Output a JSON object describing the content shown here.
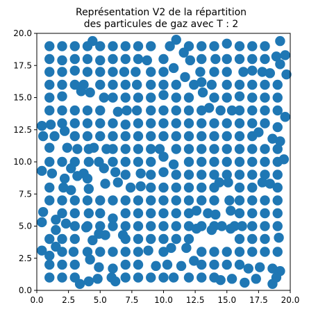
{
  "chart_data": {
    "type": "scatter",
    "title_line1": "Représentation V2 de la répartition",
    "title_line2": "des particules de gaz avec T : 2",
    "xlabel": "",
    "ylabel": "",
    "xlim": [
      0,
      20
    ],
    "ylim": [
      0,
      20
    ],
    "grid": false,
    "marker_color": "#1f77b4",
    "x_ticks": [
      "0.0",
      "2.5",
      "5.0",
      "7.5",
      "10.0",
      "12.5",
      "15.0",
      "17.5",
      "20.0"
    ],
    "y_ticks": [
      "0.0",
      "2.5",
      "5.0",
      "7.5",
      "10.0",
      "12.5",
      "15.0",
      "17.5",
      "20.0"
    ],
    "points": [
      [
        1.0,
        19.0
      ],
      [
        2.0,
        19.0
      ],
      [
        3.0,
        19.0
      ],
      [
        4.0,
        19.0
      ],
      [
        4.4,
        19.4
      ],
      [
        5.0,
        19.0
      ],
      [
        6.0,
        19.0
      ],
      [
        7.0,
        19.0
      ],
      [
        8.0,
        19.0
      ],
      [
        9.0,
        19.0
      ],
      [
        10.5,
        19.0
      ],
      [
        11.0,
        19.5
      ],
      [
        12.0,
        19.0
      ],
      [
        13.0,
        19.0
      ],
      [
        14.0,
        19.0
      ],
      [
        15.0,
        19.2
      ],
      [
        16.0,
        19.0
      ],
      [
        17.0,
        19.0
      ],
      [
        18.0,
        19.0
      ],
      [
        19.2,
        19.4
      ],
      [
        1.0,
        18.0
      ],
      [
        2.0,
        17.9
      ],
      [
        3.0,
        18.0
      ],
      [
        4.0,
        18.0
      ],
      [
        5.0,
        17.9
      ],
      [
        6.0,
        18.0
      ],
      [
        7.0,
        18.0
      ],
      [
        8.0,
        18.0
      ],
      [
        8.7,
        17.9
      ],
      [
        10.0,
        18.0
      ],
      [
        11.6,
        18.5
      ],
      [
        12.1,
        17.9
      ],
      [
        13.0,
        18.0
      ],
      [
        14.1,
        18.0
      ],
      [
        15.0,
        18.0
      ],
      [
        16.0,
        18.0
      ],
      [
        17.0,
        18.0
      ],
      [
        18.0,
        18.0
      ],
      [
        18.9,
        18.2
      ],
      [
        19.6,
        18.3
      ],
      [
        1.0,
        17.0
      ],
      [
        2.0,
        17.0
      ],
      [
        3.0,
        17.1
      ],
      [
        4.0,
        17.0
      ],
      [
        5.0,
        17.0
      ],
      [
        6.0,
        17.0
      ],
      [
        6.9,
        17.0
      ],
      [
        7.8,
        17.0
      ],
      [
        9.0,
        17.0
      ],
      [
        10.0,
        17.0
      ],
      [
        10.8,
        17.3
      ],
      [
        12.9,
        17.0
      ],
      [
        14.0,
        17.0
      ],
      [
        15.0,
        17.0
      ],
      [
        16.3,
        17.0
      ],
      [
        17.0,
        17.1
      ],
      [
        17.8,
        17.0
      ],
      [
        18.4,
        16.9
      ],
      [
        19.2,
        17.6
      ],
      [
        1.0,
        16.0
      ],
      [
        2.0,
        16.0
      ],
      [
        3.0,
        16.0
      ],
      [
        3.7,
        16.0
      ],
      [
        5.0,
        16.0
      ],
      [
        6.0,
        16.0
      ],
      [
        7.0,
        16.0
      ],
      [
        7.9,
        16.0
      ],
      [
        9.0,
        16.0
      ],
      [
        10.0,
        16.0
      ],
      [
        11.0,
        16.0
      ],
      [
        11.7,
        16.6
      ],
      [
        12.4,
        16.0
      ],
      [
        13.0,
        16.2
      ],
      [
        13.8,
        16.0
      ],
      [
        15.0,
        16.0
      ],
      [
        16.0,
        16.0
      ],
      [
        17.0,
        16.0
      ],
      [
        18.0,
        16.0
      ],
      [
        19.0,
        16.0
      ],
      [
        19.7,
        16.8
      ],
      [
        1.0,
        15.0
      ],
      [
        2.0,
        15.1
      ],
      [
        3.5,
        15.5
      ],
      [
        4.2,
        15.4
      ],
      [
        5.3,
        15.0
      ],
      [
        6.0,
        15.0
      ],
      [
        7.0,
        15.0
      ],
      [
        8.0,
        15.0
      ],
      [
        9.0,
        15.0
      ],
      [
        10.0,
        15.2
      ],
      [
        11.0,
        15.0
      ],
      [
        12.0,
        15.0
      ],
      [
        13.1,
        15.4
      ],
      [
        14.0,
        15.0
      ],
      [
        15.0,
        15.0
      ],
      [
        16.0,
        15.1
      ],
      [
        17.0,
        15.0
      ],
      [
        18.0,
        15.0
      ],
      [
        19.0,
        15.0
      ],
      [
        1.0,
        14.0
      ],
      [
        2.0,
        14.0
      ],
      [
        3.0,
        14.0
      ],
      [
        4.0,
        14.0
      ],
      [
        5.0,
        14.0
      ],
      [
        6.4,
        13.9
      ],
      [
        7.1,
        14.0
      ],
      [
        7.9,
        14.0
      ],
      [
        9.0,
        14.0
      ],
      [
        10.0,
        14.0
      ],
      [
        11.0,
        14.0
      ],
      [
        12.0,
        14.0
      ],
      [
        13.0,
        14.0
      ],
      [
        13.6,
        14.2
      ],
      [
        14.5,
        14.0
      ],
      [
        15.4,
        14.0
      ],
      [
        16.0,
        14.0
      ],
      [
        17.0,
        14.0
      ],
      [
        18.0,
        14.0
      ],
      [
        19.0,
        14.0
      ],
      [
        19.6,
        13.5
      ],
      [
        0.4,
        12.8
      ],
      [
        1.1,
        12.9
      ],
      [
        2.0,
        13.0
      ],
      [
        3.0,
        13.0
      ],
      [
        4.0,
        13.0
      ],
      [
        5.0,
        13.0
      ],
      [
        6.0,
        13.0
      ],
      [
        7.0,
        12.9
      ],
      [
        8.0,
        13.0
      ],
      [
        9.0,
        13.0
      ],
      [
        10.0,
        13.0
      ],
      [
        11.0,
        13.0
      ],
      [
        12.0,
        13.0
      ],
      [
        13.0,
        13.0
      ],
      [
        14.0,
        13.0
      ],
      [
        15.0,
        13.0
      ],
      [
        16.0,
        13.0
      ],
      [
        17.0,
        13.0
      ],
      [
        18.0,
        13.0
      ],
      [
        19.0,
        12.7
      ],
      [
        0.5,
        12.0
      ],
      [
        1.4,
        12.0
      ],
      [
        2.2,
        12.4
      ],
      [
        3.0,
        12.0
      ],
      [
        4.0,
        12.0
      ],
      [
        5.0,
        12.0
      ],
      [
        6.0,
        12.0
      ],
      [
        7.0,
        12.0
      ],
      [
        8.0,
        12.0
      ],
      [
        9.0,
        12.0
      ],
      [
        10.0,
        12.0
      ],
      [
        11.0,
        12.0
      ],
      [
        12.0,
        12.0
      ],
      [
        13.0,
        12.0
      ],
      [
        14.0,
        12.0
      ],
      [
        15.0,
        12.0
      ],
      [
        16.0,
        12.0
      ],
      [
        17.0,
        12.0
      ],
      [
        17.5,
        12.3
      ],
      [
        18.6,
        11.8
      ],
      [
        19.2,
        11.6
      ],
      [
        1.0,
        11.1
      ],
      [
        2.4,
        11.1
      ],
      [
        3.2,
        11.0
      ],
      [
        4.1,
        11.0
      ],
      [
        4.5,
        11.1
      ],
      [
        5.5,
        11.0
      ],
      [
        6.0,
        11.0
      ],
      [
        7.0,
        11.0
      ],
      [
        8.0,
        11.0
      ],
      [
        9.0,
        11.0
      ],
      [
        9.7,
        11.0
      ],
      [
        11.0,
        11.0
      ],
      [
        12.0,
        11.0
      ],
      [
        13.0,
        11.0
      ],
      [
        14.0,
        11.0
      ],
      [
        15.0,
        11.0
      ],
      [
        16.0,
        11.0
      ],
      [
        17.0,
        11.0
      ],
      [
        18.0,
        11.0
      ],
      [
        19.0,
        11.0
      ],
      [
        1.0,
        10.0
      ],
      [
        2.0,
        10.0
      ],
      [
        3.0,
        10.0
      ],
      [
        4.1,
        10.0
      ],
      [
        4.9,
        10.0
      ],
      [
        6.0,
        10.0
      ],
      [
        7.0,
        10.0
      ],
      [
        8.0,
        10.0
      ],
      [
        9.0,
        10.0
      ],
      [
        10.0,
        10.4
      ],
      [
        10.8,
        9.8
      ],
      [
        12.0,
        10.0
      ],
      [
        13.0,
        10.0
      ],
      [
        14.0,
        10.0
      ],
      [
        15.0,
        10.0
      ],
      [
        16.0,
        10.0
      ],
      [
        17.0,
        10.0
      ],
      [
        18.0,
        10.0
      ],
      [
        19.0,
        10.0
      ],
      [
        19.5,
        10.2
      ],
      [
        0.4,
        9.3
      ],
      [
        1.2,
        9.1
      ],
      [
        2.7,
        9.5
      ],
      [
        3.7,
        9.1
      ],
      [
        5.3,
        9.5
      ],
      [
        6.2,
        9.2
      ],
      [
        7.0,
        9.0
      ],
      [
        8.2,
        9.1
      ],
      [
        9.0,
        9.0
      ],
      [
        10.0,
        9.2
      ],
      [
        11.0,
        9.0
      ],
      [
        12.0,
        9.0
      ],
      [
        13.0,
        9.0
      ],
      [
        14.0,
        9.0
      ],
      [
        15.0,
        9.0
      ],
      [
        16.0,
        9.0
      ],
      [
        17.0,
        9.0
      ],
      [
        18.0,
        9.0
      ],
      [
        19.0,
        9.0
      ],
      [
        2.2,
        8.7
      ],
      [
        3.2,
        8.9
      ],
      [
        4.0,
        8.7
      ],
      [
        5.4,
        8.3
      ],
      [
        6.4,
        8.4
      ],
      [
        7.4,
        8.0
      ],
      [
        8.2,
        8.1
      ],
      [
        9.0,
        8.0
      ],
      [
        10.0,
        8.0
      ],
      [
        11.0,
        8.0
      ],
      [
        12.0,
        8.0
      ],
      [
        13.0,
        8.0
      ],
      [
        14.0,
        8.0
      ],
      [
        14.4,
        8.4
      ],
      [
        15.1,
        8.4
      ],
      [
        16.0,
        8.0
      ],
      [
        17.0,
        8.0
      ],
      [
        17.8,
        8.4
      ],
      [
        18.4,
        8.3
      ],
      [
        19.0,
        8.0
      ],
      [
        1.0,
        8.0
      ],
      [
        2.1,
        8.0
      ],
      [
        2.7,
        7.8
      ],
      [
        4.1,
        7.9
      ],
      [
        1.0,
        7.0
      ],
      [
        2.0,
        7.0
      ],
      [
        3.0,
        7.0
      ],
      [
        4.0,
        7.0
      ],
      [
        5.0,
        7.0
      ],
      [
        6.0,
        7.0
      ],
      [
        7.0,
        7.0
      ],
      [
        8.0,
        7.0
      ],
      [
        9.0,
        7.0
      ],
      [
        10.0,
        7.0
      ],
      [
        11.0,
        7.0
      ],
      [
        12.0,
        7.0
      ],
      [
        13.0,
        7.0
      ],
      [
        14.0,
        7.0
      ],
      [
        15.2,
        7.0
      ],
      [
        16.0,
        7.0
      ],
      [
        17.0,
        7.0
      ],
      [
        18.0,
        7.0
      ],
      [
        19.0,
        7.0
      ],
      [
        0.5,
        6.1
      ],
      [
        2.0,
        6.0
      ],
      [
        3.0,
        6.0
      ],
      [
        4.1,
        6.0
      ],
      [
        5.0,
        6.0
      ],
      [
        6.0,
        5.6
      ],
      [
        7.0,
        6.0
      ],
      [
        8.0,
        6.0
      ],
      [
        9.0,
        6.0
      ],
      [
        10.0,
        6.0
      ],
      [
        11.0,
        6.0
      ],
      [
        12.0,
        6.0
      ],
      [
        12.6,
        6.2
      ],
      [
        13.5,
        6.0
      ],
      [
        14.1,
        5.9
      ],
      [
        15.3,
        6.2
      ],
      [
        16.0,
        6.0
      ],
      [
        17.0,
        6.0
      ],
      [
        18.0,
        6.0
      ],
      [
        19.0,
        6.0
      ],
      [
        0.4,
        5.3
      ],
      [
        1.5,
        5.5
      ],
      [
        2.3,
        5.2
      ],
      [
        3.0,
        5.0
      ],
      [
        4.0,
        5.0
      ],
      [
        5.0,
        5.0
      ],
      [
        6.0,
        5.0
      ],
      [
        7.0,
        5.0
      ],
      [
        8.0,
        5.0
      ],
      [
        9.0,
        5.0
      ],
      [
        10.0,
        5.0
      ],
      [
        11.0,
        5.0
      ],
      [
        12.0,
        5.0
      ],
      [
        13.0,
        5.0
      ],
      [
        14.0,
        5.0
      ],
      [
        14.6,
        5.0
      ],
      [
        15.6,
        5.0
      ],
      [
        16.2,
        5.0
      ],
      [
        17.0,
        5.0
      ],
      [
        18.0,
        5.0
      ],
      [
        19.0,
        5.0
      ],
      [
        1.5,
        4.7
      ],
      [
        3.9,
        4.9
      ],
      [
        4.9,
        4.4
      ],
      [
        5.4,
        4.3
      ],
      [
        6.8,
        4.3
      ],
      [
        7.0,
        4.0
      ],
      [
        8.0,
        4.0
      ],
      [
        9.0,
        4.0
      ],
      [
        10.0,
        4.0
      ],
      [
        11.0,
        4.0
      ],
      [
        12.0,
        4.0
      ],
      [
        12.6,
        4.8
      ],
      [
        13.8,
        4.7
      ],
      [
        15.3,
        4.8
      ],
      [
        16.0,
        4.0
      ],
      [
        17.0,
        4.0
      ],
      [
        18.0,
        4.0
      ],
      [
        19.1,
        4.1
      ],
      [
        1.0,
        4.0
      ],
      [
        2.0,
        4.0
      ],
      [
        3.0,
        4.0
      ],
      [
        4.4,
        3.9
      ],
      [
        1.5,
        3.4
      ],
      [
        0.4,
        3.1
      ],
      [
        1.0,
        2.7
      ],
      [
        2.0,
        3.0
      ],
      [
        2.9,
        3.0
      ],
      [
        4.0,
        3.0
      ],
      [
        5.0,
        3.0
      ],
      [
        6.0,
        3.0
      ],
      [
        7.0,
        3.0
      ],
      [
        8.0,
        3.0
      ],
      [
        8.8,
        3.1
      ],
      [
        10.0,
        3.0
      ],
      [
        10.6,
        3.3
      ],
      [
        11.8,
        3.3
      ],
      [
        13.0,
        3.0
      ],
      [
        14.0,
        3.0
      ],
      [
        15.0,
        3.0
      ],
      [
        16.0,
        3.0
      ],
      [
        17.0,
        3.0
      ],
      [
        18.0,
        3.0
      ],
      [
        19.0,
        3.0
      ],
      [
        1.0,
        2.0
      ],
      [
        2.0,
        2.0
      ],
      [
        3.0,
        2.0
      ],
      [
        4.2,
        2.4
      ],
      [
        4.9,
        1.8
      ],
      [
        6.0,
        1.7
      ],
      [
        7.0,
        2.0
      ],
      [
        8.0,
        2.0
      ],
      [
        9.4,
        1.9
      ],
      [
        10.3,
        2.0
      ],
      [
        11.4,
        1.9
      ],
      [
        12.4,
        2.3
      ],
      [
        13.0,
        2.0
      ],
      [
        14.0,
        2.0
      ],
      [
        15.0,
        2.0
      ],
      [
        16.0,
        2.0
      ],
      [
        16.7,
        1.7
      ],
      [
        17.6,
        1.8
      ],
      [
        18.6,
        1.7
      ],
      [
        19.2,
        1.5
      ],
      [
        1.0,
        1.0
      ],
      [
        2.0,
        1.0
      ],
      [
        3.0,
        1.0
      ],
      [
        3.4,
        0.5
      ],
      [
        4.1,
        0.7
      ],
      [
        4.8,
        0.9
      ],
      [
        5.9,
        1.0
      ],
      [
        6.2,
        0.7
      ],
      [
        7.0,
        1.0
      ],
      [
        8.0,
        1.0
      ],
      [
        9.0,
        1.0
      ],
      [
        10.0,
        1.0
      ],
      [
        10.8,
        1.0
      ],
      [
        12.0,
        1.0
      ],
      [
        13.0,
        1.0
      ],
      [
        14.0,
        1.0
      ],
      [
        14.5,
        0.8
      ],
      [
        15.4,
        0.9
      ],
      [
        16.4,
        0.6
      ],
      [
        17.3,
        0.9
      ],
      [
        18.6,
        0.5
      ],
      [
        18.9,
        1.0
      ]
    ]
  }
}
